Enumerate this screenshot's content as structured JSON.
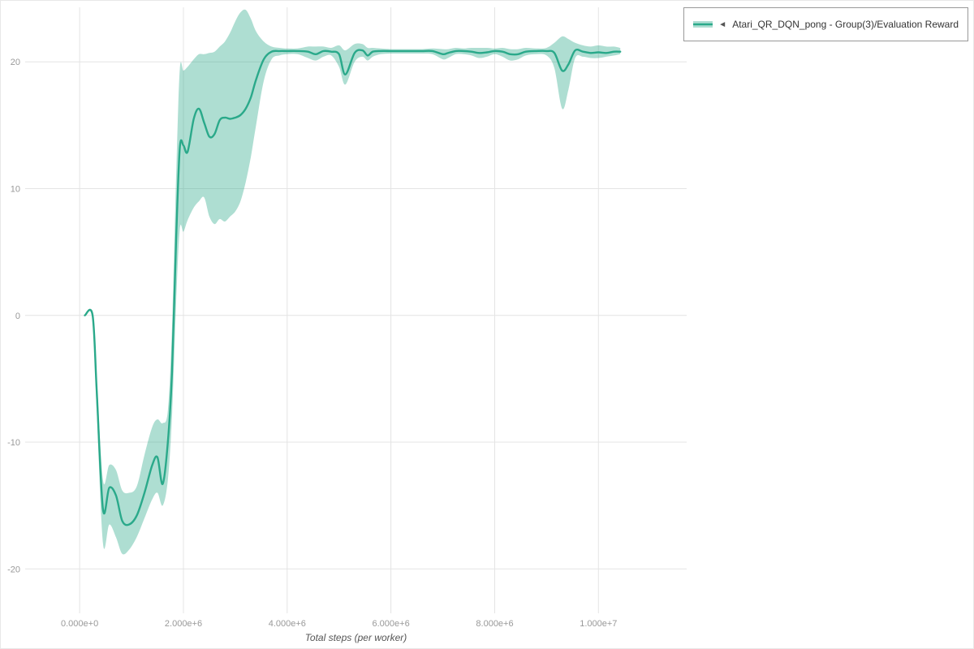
{
  "legend": {
    "arrow": "◄",
    "label": "Atari_QR_DQN_pong - Group(3)/Evaluation Reward"
  },
  "chart_data": {
    "type": "line",
    "title": "",
    "xlabel": "Total steps (per worker)",
    "ylabel": "",
    "grid": true,
    "legend_position": "top-right-outside",
    "x_unit": 1000000,
    "xlim": [
      -1050000,
      11700000
    ],
    "ylim": [
      -23.5,
      24.3
    ],
    "x_ticks": [
      {
        "v": 0,
        "label": "0.000e+0"
      },
      {
        "v": 2000000,
        "label": "2.000e+6"
      },
      {
        "v": 4000000,
        "label": "4.000e+6"
      },
      {
        "v": 6000000,
        "label": "6.000e+6"
      },
      {
        "v": 8000000,
        "label": "8.000e+6"
      },
      {
        "v": 10000000,
        "label": "1.000e+7"
      }
    ],
    "y_ticks": [
      {
        "v": -20,
        "label": "-20"
      },
      {
        "v": -10,
        "label": "-10"
      },
      {
        "v": 0,
        "label": "0"
      },
      {
        "v": 10,
        "label": "10"
      },
      {
        "v": 20,
        "label": "20"
      }
    ],
    "series": [
      {
        "name": "Atari_QR_DQN_pong - Group(3)/Evaluation Reward",
        "color": "#2aa98a",
        "band_color": "#2aa98a",
        "band_opacity": 0.38,
        "line_width": 2.4,
        "x": [
          0.1,
          0.25,
          0.33,
          0.45,
          0.57,
          0.7,
          0.82,
          0.95,
          1.1,
          1.25,
          1.4,
          1.5,
          1.6,
          1.7,
          1.78,
          1.86,
          1.93,
          2.0,
          2.08,
          2.2,
          2.3,
          2.4,
          2.5,
          2.6,
          2.7,
          2.8,
          2.9,
          3.0,
          3.1,
          3.2,
          3.3,
          3.4,
          3.55,
          3.7,
          3.85,
          4.0,
          4.2,
          4.4,
          4.55,
          4.7,
          4.85,
          5.0,
          5.12,
          5.3,
          5.45,
          5.55,
          5.65,
          5.8,
          6.0,
          6.2,
          6.4,
          6.6,
          6.8,
          7.0,
          7.1,
          7.25,
          7.4,
          7.55,
          7.7,
          7.85,
          8.0,
          8.15,
          8.3,
          8.45,
          8.6,
          8.8,
          9.0,
          9.15,
          9.3,
          9.42,
          9.55,
          9.7,
          9.85,
          10.0,
          10.15,
          10.3,
          10.42
        ],
        "mean": [
          0.0,
          0.0,
          -6.0,
          -15.3,
          -13.6,
          -14.2,
          -16.2,
          -16.5,
          -15.8,
          -14.0,
          -11.8,
          -11.2,
          -13.3,
          -10.0,
          -4.5,
          6.0,
          13.2,
          13.4,
          12.9,
          15.5,
          16.3,
          15.2,
          14.1,
          14.3,
          15.4,
          15.6,
          15.5,
          15.6,
          15.8,
          16.3,
          17.2,
          18.6,
          20.2,
          20.8,
          20.85,
          20.85,
          20.85,
          20.8,
          20.6,
          20.85,
          20.8,
          20.6,
          19.0,
          20.7,
          20.9,
          20.5,
          20.8,
          20.85,
          20.85,
          20.85,
          20.85,
          20.85,
          20.85,
          20.6,
          20.7,
          20.85,
          20.85,
          20.8,
          20.7,
          20.75,
          20.85,
          20.8,
          20.6,
          20.6,
          20.8,
          20.85,
          20.85,
          20.7,
          19.3,
          19.8,
          20.9,
          20.8,
          20.7,
          20.75,
          20.7,
          20.8,
          20.8
        ],
        "lower": [
          0.0,
          -0.3,
          -7.5,
          -18.0,
          -16.5,
          -17.5,
          -18.8,
          -18.5,
          -17.5,
          -16.0,
          -14.5,
          -14.0,
          -15.0,
          -13.0,
          -8.0,
          1.0,
          6.8,
          6.6,
          7.5,
          8.5,
          9.0,
          9.3,
          7.8,
          7.2,
          7.6,
          7.4,
          7.8,
          8.2,
          9.0,
          10.5,
          12.5,
          15.0,
          18.5,
          20.2,
          20.5,
          20.6,
          20.6,
          20.3,
          20.1,
          20.4,
          20.5,
          19.6,
          18.2,
          20.0,
          20.4,
          20.1,
          20.4,
          20.6,
          20.65,
          20.65,
          20.65,
          20.65,
          20.6,
          20.2,
          20.3,
          20.6,
          20.6,
          20.5,
          20.3,
          20.4,
          20.6,
          20.4,
          20.1,
          20.2,
          20.5,
          20.6,
          20.5,
          19.5,
          16.3,
          17.8,
          20.3,
          20.4,
          20.3,
          20.3,
          20.4,
          20.5,
          20.6
        ],
        "upper": [
          0.0,
          0.1,
          -5.0,
          -13.0,
          -11.8,
          -12.2,
          -13.8,
          -14.0,
          -13.5,
          -11.0,
          -8.8,
          -8.2,
          -8.5,
          -7.5,
          -1.0,
          11.0,
          19.4,
          19.3,
          19.6,
          20.2,
          20.6,
          20.6,
          20.7,
          20.8,
          21.2,
          21.6,
          22.3,
          23.2,
          23.9,
          24.1,
          23.4,
          22.4,
          21.6,
          21.2,
          21.1,
          21.05,
          21.05,
          21.2,
          21.2,
          21.2,
          21.1,
          21.3,
          20.9,
          21.4,
          21.4,
          21.1,
          21.1,
          21.05,
          21.0,
          21.0,
          21.0,
          21.0,
          21.05,
          21.0,
          21.0,
          21.1,
          21.05,
          21.1,
          21.1,
          21.1,
          21.05,
          21.1,
          21.0,
          21.0,
          21.1,
          21.05,
          21.1,
          21.5,
          22.0,
          21.8,
          21.5,
          21.3,
          21.2,
          21.3,
          21.2,
          21.2,
          21.1
        ]
      }
    ]
  }
}
